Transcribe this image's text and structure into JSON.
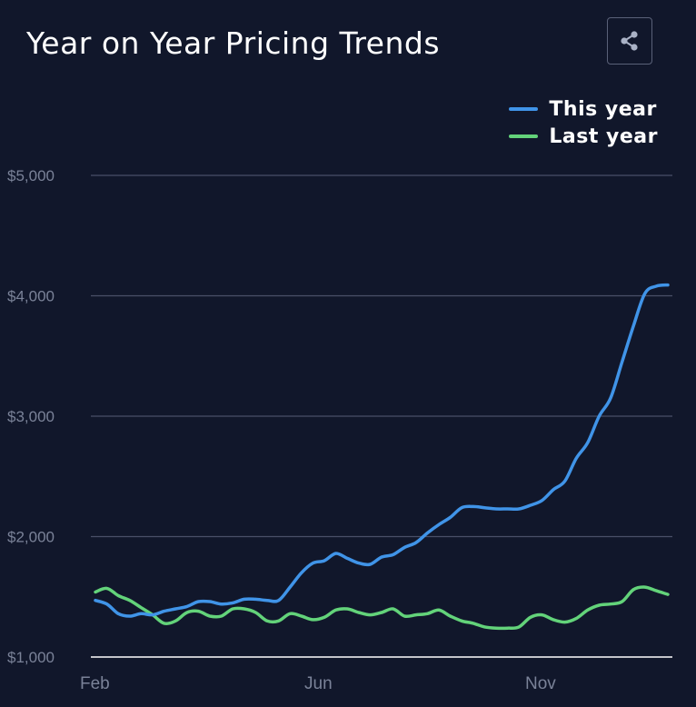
{
  "title": "Year on Year Pricing Trends",
  "share_icon": "share-icon",
  "colors": {
    "background": "#11172b",
    "grid": "#4a5068",
    "axis": "#ffffff",
    "tick_text": "#7a8298",
    "this_year": "#4094e8",
    "last_year": "#63d37a"
  },
  "chart_data": {
    "type": "line",
    "title": "Year on Year Pricing Trends",
    "xlabel": "",
    "ylabel": "",
    "x_tick_labels": [
      "Feb",
      "Jun",
      "Nov"
    ],
    "y_tick_labels": [
      "$1,000",
      "$2,000",
      "$3,000",
      "$4,000",
      "$5,000"
    ],
    "y_ticks": [
      1000,
      2000,
      3000,
      4000,
      5000
    ],
    "ylim": [
      1000,
      5000
    ],
    "grid": true,
    "legend_position": "top-right",
    "series": [
      {
        "name": "This year",
        "color": "#4094e8",
        "values": [
          1470,
          1440,
          1360,
          1340,
          1360,
          1350,
          1380,
          1400,
          1420,
          1460,
          1460,
          1440,
          1450,
          1480,
          1480,
          1470,
          1470,
          1580,
          1700,
          1780,
          1800,
          1860,
          1820,
          1780,
          1770,
          1830,
          1850,
          1910,
          1950,
          2030,
          2100,
          2160,
          2240,
          2250,
          2240,
          2230,
          2230,
          2230,
          2260,
          2300,
          2390,
          2460,
          2650,
          2780,
          3000,
          3150,
          3450,
          3750,
          4020,
          4080,
          4090
        ]
      },
      {
        "name": "Last year",
        "color": "#63d37a",
        "values": [
          1540,
          1570,
          1510,
          1470,
          1410,
          1350,
          1280,
          1300,
          1370,
          1380,
          1340,
          1340,
          1400,
          1400,
          1370,
          1300,
          1300,
          1360,
          1340,
          1310,
          1330,
          1390,
          1400,
          1370,
          1350,
          1370,
          1400,
          1340,
          1350,
          1360,
          1390,
          1340,
          1300,
          1280,
          1250,
          1240,
          1240,
          1250,
          1330,
          1350,
          1310,
          1290,
          1320,
          1390,
          1430,
          1440,
          1460,
          1560,
          1580,
          1550,
          1520
        ]
      }
    ]
  }
}
